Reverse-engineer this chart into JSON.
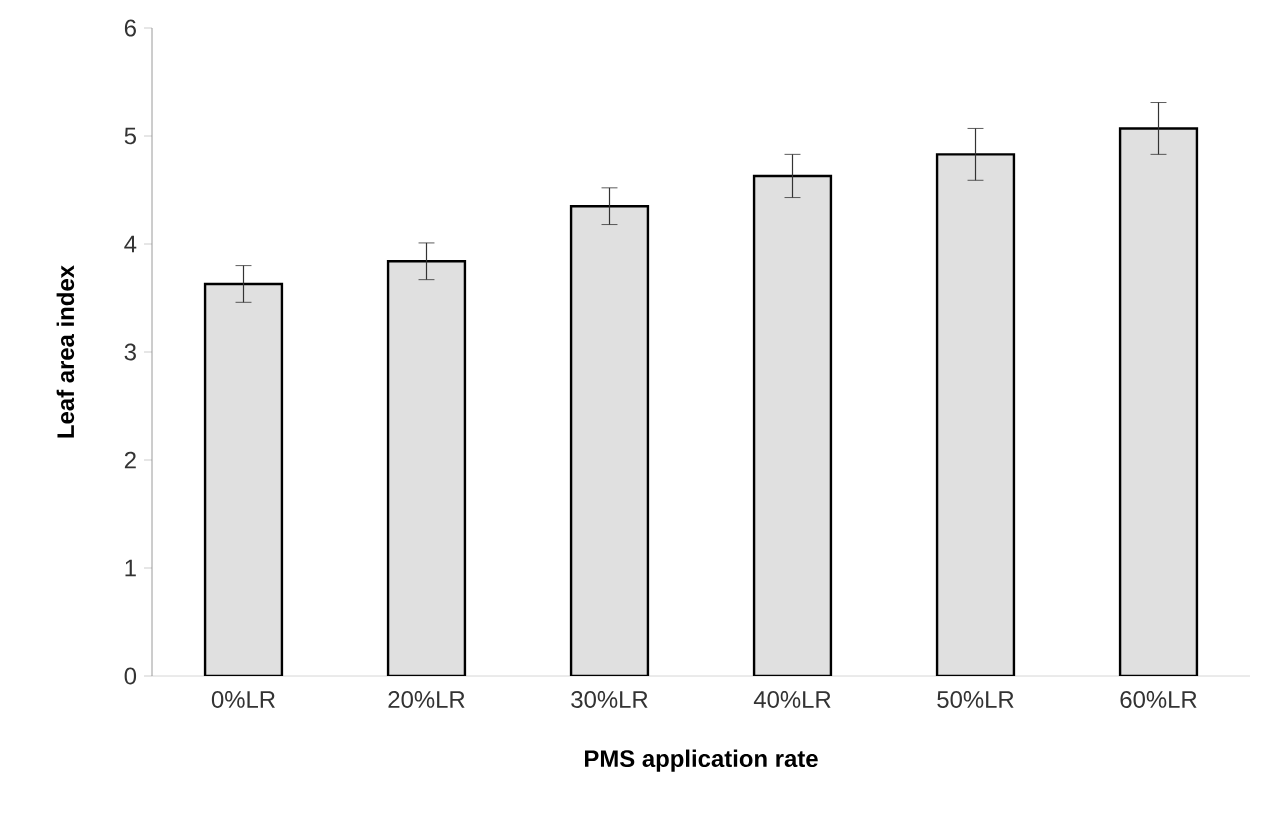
{
  "chart_data": {
    "type": "bar",
    "xlabel": "PMS application rate",
    "ylabel": "Leaf area index",
    "categories": [
      "0%LR",
      "20%LR",
      "30%LR",
      "40%LR",
      "50%LR",
      "60%LR"
    ],
    "values": [
      3.63,
      3.84,
      4.35,
      4.63,
      4.83,
      5.07
    ],
    "errors": [
      0.17,
      0.17,
      0.17,
      0.2,
      0.24,
      0.24
    ],
    "color": "#e0e0e0",
    "ylim": [
      0,
      6
    ],
    "yticks": [
      0,
      1,
      2,
      3,
      4,
      5,
      6
    ],
    "grid": false
  }
}
